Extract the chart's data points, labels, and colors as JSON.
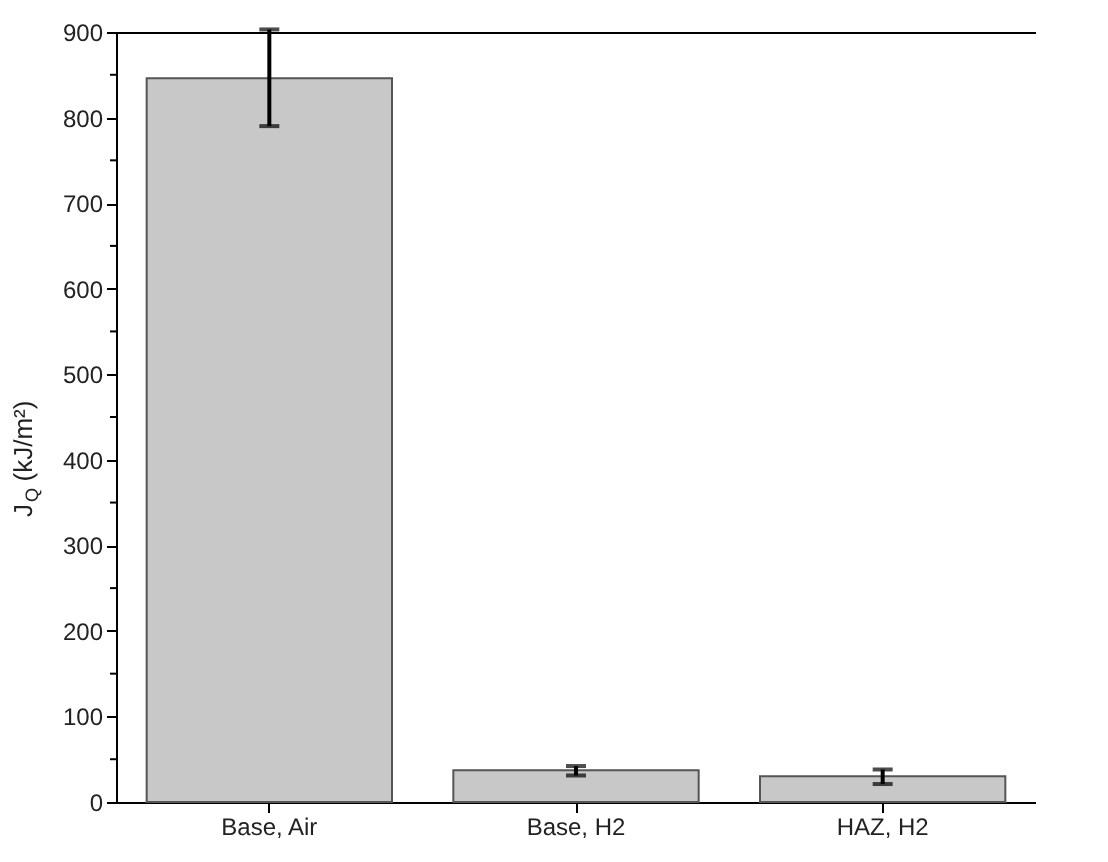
{
  "chart_data": {
    "type": "bar",
    "categories": [
      "Base, Air",
      "Base, H2",
      "HAZ, H2"
    ],
    "values": [
      846,
      37,
      30
    ],
    "errors": [
      [
        790,
        903
      ],
      [
        31,
        42
      ],
      [
        21,
        38
      ]
    ],
    "color": "#c8c8c8",
    "ylabel": "J$_{Q}$ (kJ/m²)",
    "ylim": [
      0,
      900
    ],
    "yticks": [
      0,
      {
        "value": 50,
        "label": null
      },
      100,
      {
        "value": 150,
        "label": null
      },
      200,
      {
        "value": 250,
        "label": null
      },
      300,
      {
        "value": 350,
        "label": null
      },
      400,
      {
        "value": 450,
        "label": null
      },
      500,
      {
        "value": 550,
        "label": null
      },
      600,
      {
        "value": 650,
        "label": null
      },
      700,
      {
        "value": 750,
        "label": null
      },
      800,
      {
        "value": 850,
        "label": null
      },
      900
    ],
    "grid": false
  }
}
